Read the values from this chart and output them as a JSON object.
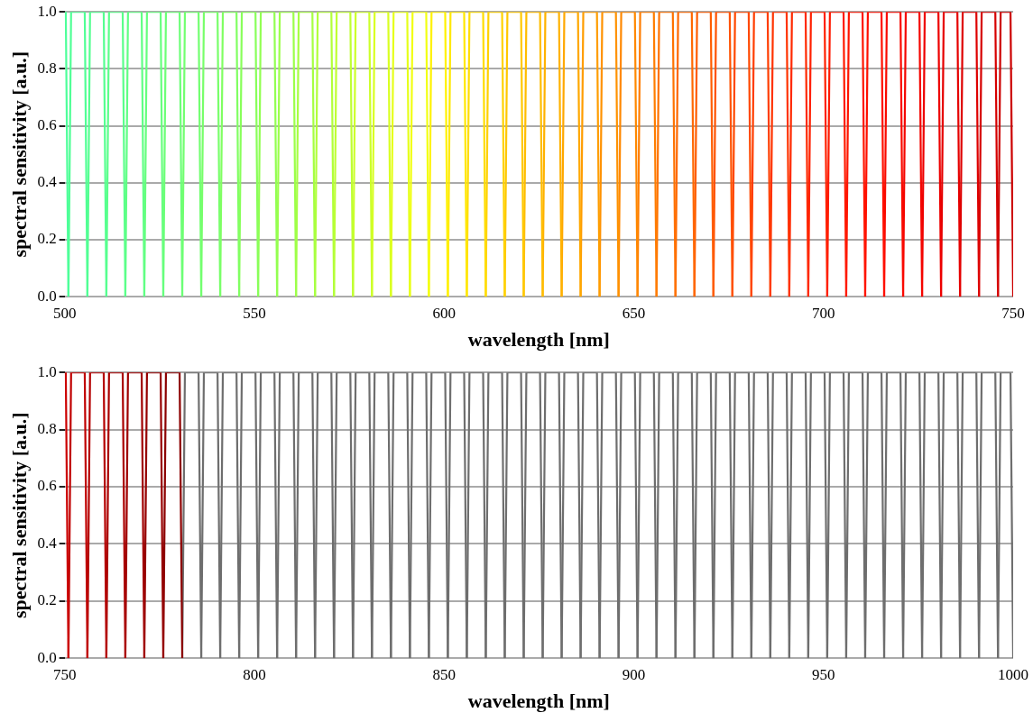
{
  "chart_data": [
    {
      "type": "line",
      "xlabel": "wavelength [nm]",
      "ylabel": "spectral sensitivity [a.u.]",
      "xlim": [
        500,
        750
      ],
      "xticks": [
        500,
        550,
        600,
        650,
        700,
        750
      ],
      "ylim": [
        0,
        1
      ],
      "yticks": [
        {
          "value": 0,
          "label": "0.0"
        },
        {
          "value": 0.2,
          "label": "0.2"
        },
        {
          "value": 0.4,
          "label": "0.4"
        },
        {
          "value": 0.6,
          "label": "0.6"
        },
        {
          "value": 0.8,
          "label": "0.8"
        },
        {
          "value": 1,
          "label": "1.0"
        }
      ],
      "grid": "y",
      "series": [
        {
          "color": "#4dff9a",
          "x": [
            500,
            500.3,
            501
          ],
          "values": [
            1,
            1,
            0
          ]
        },
        {
          "color": "#50ff95",
          "x": [
            501,
            501.7,
            505.3,
            506
          ],
          "values": [
            0,
            1,
            1,
            0
          ]
        },
        {
          "color": "#55ff90",
          "x": [
            506,
            506.7,
            510.3,
            511
          ],
          "values": [
            0,
            1,
            1,
            0
          ]
        },
        {
          "color": "#5aff8a",
          "x": [
            511,
            511.7,
            515.3,
            516
          ],
          "values": [
            0,
            1,
            1,
            0
          ]
        },
        {
          "color": "#60ff84",
          "x": [
            516,
            516.7,
            520.3,
            521
          ],
          "values": [
            0,
            1,
            1,
            0
          ]
        },
        {
          "color": "#66ff7e",
          "x": [
            521,
            521.7,
            525.3,
            526
          ],
          "values": [
            0,
            1,
            1,
            0
          ]
        },
        {
          "color": "#6cff77",
          "x": [
            526,
            526.7,
            530.3,
            531
          ],
          "values": [
            0,
            1,
            1,
            0
          ]
        },
        {
          "color": "#72ff70",
          "x": [
            531,
            531.7,
            535.3,
            536
          ],
          "values": [
            0,
            1,
            1,
            0
          ]
        },
        {
          "color": "#78ff6a",
          "x": [
            536,
            536.7,
            540.3,
            541
          ],
          "values": [
            0,
            1,
            1,
            0
          ]
        },
        {
          "color": "#80ff62",
          "x": [
            541,
            541.7,
            545.3,
            546
          ],
          "values": [
            0,
            1,
            1,
            0
          ]
        },
        {
          "color": "#88ff5a",
          "x": [
            546,
            546.7,
            550.3,
            551
          ],
          "values": [
            0,
            1,
            1,
            0
          ]
        },
        {
          "color": "#92ff52",
          "x": [
            551,
            551.7,
            555.3,
            556
          ],
          "values": [
            0,
            1,
            1,
            0
          ]
        },
        {
          "color": "#9cff4a",
          "x": [
            556,
            556.7,
            560.3,
            561
          ],
          "values": [
            0,
            1,
            1,
            0
          ]
        },
        {
          "color": "#a6ff42",
          "x": [
            561,
            561.7,
            565.3,
            566
          ],
          "values": [
            0,
            1,
            1,
            0
          ]
        },
        {
          "color": "#b2ff3a",
          "x": [
            566,
            566.7,
            570.3,
            571
          ],
          "values": [
            0,
            1,
            1,
            0
          ]
        },
        {
          "color": "#bfff33",
          "x": [
            571,
            571.7,
            575.3,
            576
          ],
          "values": [
            0,
            1,
            1,
            0
          ]
        },
        {
          "color": "#ccff2a",
          "x": [
            576,
            576.7,
            580.3,
            581
          ],
          "values": [
            0,
            1,
            1,
            0
          ]
        },
        {
          "color": "#d9ff22",
          "x": [
            581,
            581.7,
            585.3,
            586
          ],
          "values": [
            0,
            1,
            1,
            0
          ]
        },
        {
          "color": "#e6ff1a",
          "x": [
            586,
            586.7,
            590.3,
            591
          ],
          "values": [
            0,
            1,
            1,
            0
          ]
        },
        {
          "color": "#f2ff12",
          "x": [
            591,
            591.7,
            595.3,
            596
          ],
          "values": [
            0,
            1,
            1,
            0
          ]
        },
        {
          "color": "#fff200",
          "x": [
            596,
            596.7,
            600.3,
            601
          ],
          "values": [
            0,
            1,
            1,
            0
          ]
        },
        {
          "color": "#ffe800",
          "x": [
            601,
            601.7,
            605.3,
            606
          ],
          "values": [
            0,
            1,
            1,
            0
          ]
        },
        {
          "color": "#ffdd00",
          "x": [
            606,
            606.7,
            610.3,
            611
          ],
          "values": [
            0,
            1,
            1,
            0
          ]
        },
        {
          "color": "#ffd200",
          "x": [
            611,
            611.7,
            615.3,
            616
          ],
          "values": [
            0,
            1,
            1,
            0
          ]
        },
        {
          "color": "#ffc800",
          "x": [
            616,
            616.7,
            620.3,
            621
          ],
          "values": [
            0,
            1,
            1,
            0
          ]
        },
        {
          "color": "#ffbd00",
          "x": [
            621,
            621.7,
            625.3,
            626
          ],
          "values": [
            0,
            1,
            1,
            0
          ]
        },
        {
          "color": "#ffb200",
          "x": [
            626,
            626.7,
            630.3,
            631
          ],
          "values": [
            0,
            1,
            1,
            0
          ]
        },
        {
          "color": "#ffa800",
          "x": [
            631,
            631.7,
            635.3,
            636
          ],
          "values": [
            0,
            1,
            1,
            0
          ]
        },
        {
          "color": "#ff9d00",
          "x": [
            636,
            636.7,
            640.3,
            641
          ],
          "values": [
            0,
            1,
            1,
            0
          ]
        },
        {
          "color": "#ff9200",
          "x": [
            641,
            641.7,
            645.3,
            646
          ],
          "values": [
            0,
            1,
            1,
            0
          ]
        },
        {
          "color": "#ff8800",
          "x": [
            646,
            646.7,
            650.3,
            651
          ],
          "values": [
            0,
            1,
            1,
            0
          ]
        },
        {
          "color": "#ff7d00",
          "x": [
            651,
            651.7,
            655.3,
            656
          ],
          "values": [
            0,
            1,
            1,
            0
          ]
        },
        {
          "color": "#ff7200",
          "x": [
            656,
            656.7,
            660.3,
            661
          ],
          "values": [
            0,
            1,
            1,
            0
          ]
        },
        {
          "color": "#ff6800",
          "x": [
            661,
            661.7,
            665.3,
            666
          ],
          "values": [
            0,
            1,
            1,
            0
          ]
        },
        {
          "color": "#ff5d00",
          "x": [
            666,
            666.7,
            670.3,
            671
          ],
          "values": [
            0,
            1,
            1,
            0
          ]
        },
        {
          "color": "#ff5200",
          "x": [
            671,
            671.7,
            675.3,
            676
          ],
          "values": [
            0,
            1,
            1,
            0
          ]
        },
        {
          "color": "#ff4800",
          "x": [
            676,
            676.7,
            680.3,
            681
          ],
          "values": [
            0,
            1,
            1,
            0
          ]
        },
        {
          "color": "#ff3d00",
          "x": [
            681,
            681.7,
            685.3,
            686
          ],
          "values": [
            0,
            1,
            1,
            0
          ]
        },
        {
          "color": "#ff3300",
          "x": [
            686,
            686.7,
            690.3,
            691
          ],
          "values": [
            0,
            1,
            1,
            0
          ]
        },
        {
          "color": "#ff2900",
          "x": [
            691,
            691.7,
            695.3,
            696
          ],
          "values": [
            0,
            1,
            1,
            0
          ]
        },
        {
          "color": "#ff2000",
          "x": [
            696,
            696.7,
            700.3,
            701
          ],
          "values": [
            0,
            1,
            1,
            0
          ]
        },
        {
          "color": "#ff1a00",
          "x": [
            701,
            701.7,
            705.3,
            706
          ],
          "values": [
            0,
            1,
            1,
            0
          ]
        },
        {
          "color": "#ff1500",
          "x": [
            706,
            706.7,
            710.3,
            711
          ],
          "values": [
            0,
            1,
            1,
            0
          ]
        },
        {
          "color": "#ff1000",
          "x": [
            711,
            711.7,
            715.3,
            716
          ],
          "values": [
            0,
            1,
            1,
            0
          ]
        },
        {
          "color": "#fa0a00",
          "x": [
            716,
            716.7,
            720.3,
            721
          ],
          "values": [
            0,
            1,
            1,
            0
          ]
        },
        {
          "color": "#f50500",
          "x": [
            721,
            721.7,
            725.3,
            726
          ],
          "values": [
            0,
            1,
            1,
            0
          ]
        },
        {
          "color": "#ee0000",
          "x": [
            726,
            726.7,
            730.3,
            731
          ],
          "values": [
            0,
            1,
            1,
            0
          ]
        },
        {
          "color": "#e60000",
          "x": [
            731,
            731.7,
            735.3,
            736
          ],
          "values": [
            0,
            1,
            1,
            0
          ]
        },
        {
          "color": "#de0000",
          "x": [
            736,
            736.7,
            740.3,
            741
          ],
          "values": [
            0,
            1,
            1,
            0
          ]
        },
        {
          "color": "#d60000",
          "x": [
            741,
            741.7,
            745.3,
            746
          ],
          "values": [
            0,
            1,
            1,
            0
          ]
        },
        {
          "color": "#cc0000",
          "x": [
            746,
            746.7,
            749.3,
            750
          ],
          "values": [
            0,
            1,
            1,
            0
          ]
        }
      ]
    },
    {
      "type": "line",
      "xlabel": "wavelength [nm]",
      "ylabel": "spectral sensitivity [a.u.]",
      "xlim": [
        750,
        1000
      ],
      "xticks": [
        750,
        800,
        850,
        900,
        950,
        1000
      ],
      "ylim": [
        0,
        1
      ],
      "yticks": [
        {
          "value": 0,
          "label": "0.0"
        },
        {
          "value": 0.2,
          "label": "0.2"
        },
        {
          "value": 0.4,
          "label": "0.4"
        },
        {
          "value": 0.6,
          "label": "0.6"
        },
        {
          "value": 0.8,
          "label": "0.8"
        },
        {
          "value": 1,
          "label": "1.0"
        }
      ],
      "grid": "y",
      "series": [
        {
          "color": "#cc0000",
          "x": [
            750,
            750.3,
            751
          ],
          "values": [
            1,
            1,
            0
          ]
        },
        {
          "color": "#c00000",
          "x": [
            751,
            751.7,
            755.3,
            756
          ],
          "values": [
            0,
            1,
            1,
            0
          ]
        },
        {
          "color": "#b40000",
          "x": [
            756,
            756.7,
            760.3,
            761
          ],
          "values": [
            0,
            1,
            1,
            0
          ]
        },
        {
          "color": "#aa0000",
          "x": [
            761,
            761.7,
            765.3,
            766
          ],
          "values": [
            0,
            1,
            1,
            0
          ]
        },
        {
          "color": "#a00000",
          "x": [
            766,
            766.7,
            770.3,
            771
          ],
          "values": [
            0,
            1,
            1,
            0
          ]
        },
        {
          "color": "#960000",
          "x": [
            771,
            771.7,
            775.3,
            776
          ],
          "values": [
            0,
            1,
            1,
            0
          ]
        },
        {
          "color": "#8c0000",
          "x": [
            776,
            776.7,
            780.3,
            781
          ],
          "values": [
            0,
            1,
            1,
            0
          ]
        },
        {
          "color": "#6e6e6e",
          "x": [
            781,
            781.7,
            785.3,
            786
          ],
          "values": [
            0,
            1,
            1,
            0
          ]
        },
        {
          "color": "#6e6e6e",
          "x": [
            786,
            786.7,
            790.3,
            791
          ],
          "values": [
            0,
            1,
            1,
            0
          ]
        },
        {
          "color": "#6e6e6e",
          "x": [
            791,
            791.7,
            795.3,
            796
          ],
          "values": [
            0,
            1,
            1,
            0
          ]
        },
        {
          "color": "#6e6e6e",
          "x": [
            796,
            796.7,
            800.3,
            801
          ],
          "values": [
            0,
            1,
            1,
            0
          ]
        },
        {
          "color": "#6e6e6e",
          "x": [
            801,
            801.7,
            805.3,
            806
          ],
          "values": [
            0,
            1,
            1,
            0
          ]
        },
        {
          "color": "#6e6e6e",
          "x": [
            806,
            806.7,
            810.3,
            811
          ],
          "values": [
            0,
            1,
            1,
            0
          ]
        },
        {
          "color": "#6e6e6e",
          "x": [
            811,
            811.7,
            815.3,
            816
          ],
          "values": [
            0,
            1,
            1,
            0
          ]
        },
        {
          "color": "#6e6e6e",
          "x": [
            816,
            816.7,
            820.3,
            821
          ],
          "values": [
            0,
            1,
            1,
            0
          ]
        },
        {
          "color": "#6e6e6e",
          "x": [
            821,
            821.7,
            825.3,
            826
          ],
          "values": [
            0,
            1,
            1,
            0
          ]
        },
        {
          "color": "#6e6e6e",
          "x": [
            826,
            826.7,
            830.3,
            831
          ],
          "values": [
            0,
            1,
            1,
            0
          ]
        },
        {
          "color": "#6e6e6e",
          "x": [
            831,
            831.7,
            835.3,
            836
          ],
          "values": [
            0,
            1,
            1,
            0
          ]
        },
        {
          "color": "#6e6e6e",
          "x": [
            836,
            836.7,
            840.3,
            841
          ],
          "values": [
            0,
            1,
            1,
            0
          ]
        },
        {
          "color": "#6e6e6e",
          "x": [
            841,
            841.7,
            845.3,
            846
          ],
          "values": [
            0,
            1,
            1,
            0
          ]
        },
        {
          "color": "#6e6e6e",
          "x": [
            846,
            846.7,
            850.3,
            851
          ],
          "values": [
            0,
            1,
            1,
            0
          ]
        },
        {
          "color": "#6e6e6e",
          "x": [
            851,
            851.7,
            855.3,
            856
          ],
          "values": [
            0,
            1,
            1,
            0
          ]
        },
        {
          "color": "#6e6e6e",
          "x": [
            856,
            856.7,
            860.3,
            861
          ],
          "values": [
            0,
            1,
            1,
            0
          ]
        },
        {
          "color": "#6e6e6e",
          "x": [
            861,
            861.7,
            865.3,
            866
          ],
          "values": [
            0,
            1,
            1,
            0
          ]
        },
        {
          "color": "#6e6e6e",
          "x": [
            866,
            866.7,
            870.3,
            871
          ],
          "values": [
            0,
            1,
            1,
            0
          ]
        },
        {
          "color": "#6e6e6e",
          "x": [
            871,
            871.7,
            875.3,
            876
          ],
          "values": [
            0,
            1,
            1,
            0
          ]
        },
        {
          "color": "#6e6e6e",
          "x": [
            876,
            876.7,
            880.3,
            881
          ],
          "values": [
            0,
            1,
            1,
            0
          ]
        },
        {
          "color": "#6e6e6e",
          "x": [
            881,
            881.7,
            885.3,
            886
          ],
          "values": [
            0,
            1,
            1,
            0
          ]
        },
        {
          "color": "#6e6e6e",
          "x": [
            886,
            886.7,
            890.3,
            891
          ],
          "values": [
            0,
            1,
            1,
            0
          ]
        },
        {
          "color": "#6e6e6e",
          "x": [
            891,
            891.7,
            895.3,
            896
          ],
          "values": [
            0,
            1,
            1,
            0
          ]
        },
        {
          "color": "#6e6e6e",
          "x": [
            896,
            896.7,
            900.3,
            901
          ],
          "values": [
            0,
            1,
            1,
            0
          ]
        },
        {
          "color": "#6e6e6e",
          "x": [
            901,
            901.7,
            905.3,
            906
          ],
          "values": [
            0,
            1,
            1,
            0
          ]
        },
        {
          "color": "#6e6e6e",
          "x": [
            906,
            906.7,
            910.3,
            911
          ],
          "values": [
            0,
            1,
            1,
            0
          ]
        },
        {
          "color": "#6e6e6e",
          "x": [
            911,
            911.7,
            915.3,
            916
          ],
          "values": [
            0,
            1,
            1,
            0
          ]
        },
        {
          "color": "#6e6e6e",
          "x": [
            916,
            916.7,
            920.3,
            921
          ],
          "values": [
            0,
            1,
            1,
            0
          ]
        },
        {
          "color": "#6e6e6e",
          "x": [
            921,
            921.7,
            925.3,
            926
          ],
          "values": [
            0,
            1,
            1,
            0
          ]
        },
        {
          "color": "#6e6e6e",
          "x": [
            926,
            926.7,
            930.3,
            931
          ],
          "values": [
            0,
            1,
            1,
            0
          ]
        },
        {
          "color": "#6e6e6e",
          "x": [
            931,
            931.7,
            935.3,
            936
          ],
          "values": [
            0,
            1,
            1,
            0
          ]
        },
        {
          "color": "#6e6e6e",
          "x": [
            936,
            936.7,
            940.3,
            941
          ],
          "values": [
            0,
            1,
            1,
            0
          ]
        },
        {
          "color": "#6e6e6e",
          "x": [
            941,
            941.7,
            945.3,
            946
          ],
          "values": [
            0,
            1,
            1,
            0
          ]
        },
        {
          "color": "#6e6e6e",
          "x": [
            946,
            946.7,
            950.3,
            951
          ],
          "values": [
            0,
            1,
            1,
            0
          ]
        },
        {
          "color": "#6e6e6e",
          "x": [
            951,
            951.7,
            955.3,
            956
          ],
          "values": [
            0,
            1,
            1,
            0
          ]
        },
        {
          "color": "#6e6e6e",
          "x": [
            956,
            956.7,
            960.3,
            961
          ],
          "values": [
            0,
            1,
            1,
            0
          ]
        },
        {
          "color": "#6e6e6e",
          "x": [
            961,
            961.7,
            965.3,
            966
          ],
          "values": [
            0,
            1,
            1,
            0
          ]
        },
        {
          "color": "#6e6e6e",
          "x": [
            966,
            966.7,
            970.3,
            971
          ],
          "values": [
            0,
            1,
            1,
            0
          ]
        },
        {
          "color": "#6e6e6e",
          "x": [
            971,
            971.7,
            975.3,
            976
          ],
          "values": [
            0,
            1,
            1,
            0
          ]
        },
        {
          "color": "#6e6e6e",
          "x": [
            976,
            976.7,
            980.3,
            981
          ],
          "values": [
            0,
            1,
            1,
            0
          ]
        },
        {
          "color": "#6e6e6e",
          "x": [
            981,
            981.7,
            985.3,
            986
          ],
          "values": [
            0,
            1,
            1,
            0
          ]
        },
        {
          "color": "#6e6e6e",
          "x": [
            986,
            986.7,
            990.3,
            991
          ],
          "values": [
            0,
            1,
            1,
            0
          ]
        },
        {
          "color": "#6e6e6e",
          "x": [
            991,
            991.7,
            995.3,
            996
          ],
          "values": [
            0,
            1,
            1,
            0
          ]
        },
        {
          "color": "#6e6e6e",
          "x": [
            996,
            996.7,
            999.3,
            1000
          ],
          "values": [
            0,
            1,
            1,
            0
          ]
        }
      ]
    }
  ]
}
